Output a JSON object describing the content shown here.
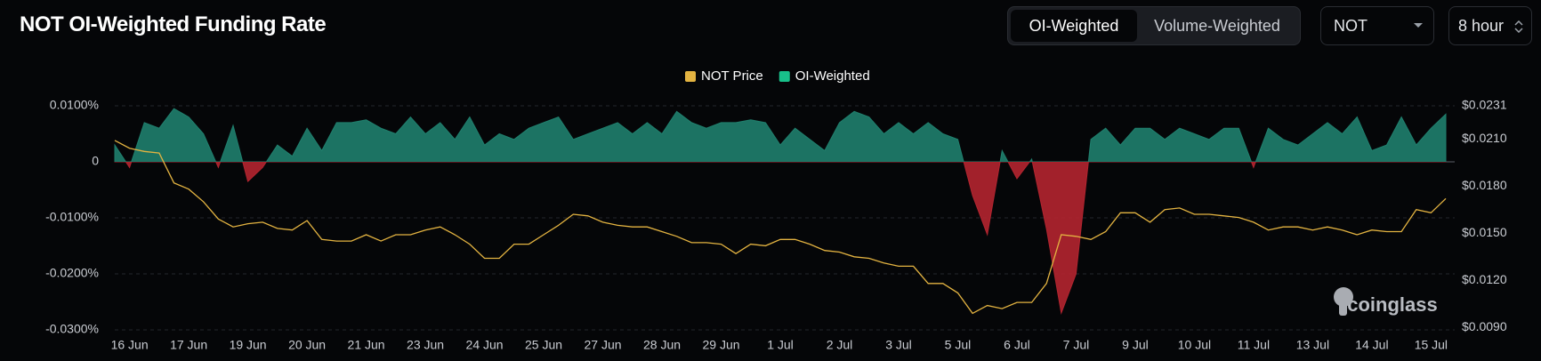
{
  "chart_data": {
    "type": "line",
    "title": "NOT OI-Weighted Funding Rate",
    "controls": {
      "tabs": [
        "OI-Weighted",
        "Volume-Weighted"
      ],
      "symbol": "NOT",
      "interval": "8 hour"
    },
    "watermark": "coinglass",
    "categories": [
      null,
      "16 Jun",
      null,
      null,
      null,
      "17 Jun",
      null,
      null,
      null,
      "19 Jun",
      null,
      null,
      null,
      "20 Jun",
      null,
      null,
      null,
      "21 Jun",
      null,
      null,
      null,
      "23 Jun",
      null,
      null,
      null,
      "24 Jun",
      null,
      null,
      null,
      "25 Jun",
      null,
      null,
      null,
      "27 Jun",
      null,
      null,
      null,
      "28 Jun",
      null,
      null,
      null,
      "29 Jun",
      null,
      null,
      null,
      "1 Jul",
      null,
      null,
      null,
      "2 Jul",
      null,
      null,
      null,
      "3 Jul",
      null,
      null,
      null,
      "5 Jul",
      null,
      null,
      null,
      "6 Jul",
      null,
      null,
      null,
      "7 Jul",
      null,
      null,
      null,
      "9 Jul",
      null,
      null,
      null,
      "10 Jul",
      null,
      null,
      null,
      "11 Jul",
      null,
      null,
      null,
      "13 Jul",
      null,
      null,
      null,
      "14 Jul",
      null,
      null,
      null,
      "15 Jul",
      null
    ],
    "series": [
      {
        "name": "NOT Price",
        "type": "line",
        "axis": "y2",
        "color": "#e3b341",
        "values": [
          0.0209,
          0.0204,
          0.0202,
          0.0201,
          0.0182,
          0.0178,
          0.017,
          0.0159,
          0.0154,
          0.0156,
          0.0157,
          0.0153,
          0.0152,
          0.0158,
          0.0146,
          0.0145,
          0.0145,
          0.0149,
          0.0145,
          0.0149,
          0.0149,
          0.0152,
          0.0154,
          0.0149,
          0.0143,
          0.0134,
          0.0134,
          0.0143,
          0.0143,
          0.0149,
          0.0155,
          0.0162,
          0.0161,
          0.0157,
          0.0155,
          0.0154,
          0.0154,
          0.0151,
          0.0148,
          0.0144,
          0.0144,
          0.0143,
          0.0137,
          0.0143,
          0.0142,
          0.0146,
          0.0146,
          0.0143,
          0.0139,
          0.0138,
          0.0135,
          0.0134,
          0.0131,
          0.0129,
          0.0129,
          0.0118,
          0.0118,
          0.0112,
          0.0099,
          0.0104,
          0.0102,
          0.0106,
          0.0106,
          0.0118,
          0.0149,
          0.0148,
          0.0146,
          0.0151,
          0.0163,
          0.0163,
          0.0157,
          0.0165,
          0.0166,
          0.0162,
          0.0162,
          0.0161,
          0.016,
          0.0157,
          0.0152,
          0.0154,
          0.0154,
          0.0152,
          0.0154,
          0.0152,
          0.0149,
          0.0152,
          0.0151,
          0.0151,
          0.0165,
          0.0163,
          0.0172
        ]
      },
      {
        "name": "OI-Weighted",
        "type": "area",
        "color": "#1f7f6d",
        "negative_color": "#b3242f",
        "values": [
          0.003,
          -0.001,
          0.007,
          0.006,
          0.0095,
          0.008,
          0.005,
          -0.001,
          0.0065,
          -0.0035,
          -0.001,
          0.003,
          0.001,
          0.006,
          0.002,
          0.007,
          0.007,
          0.0075,
          0.006,
          0.005,
          0.008,
          0.005,
          0.007,
          0.004,
          0.008,
          0.003,
          0.005,
          0.004,
          0.006,
          0.007,
          0.008,
          0.004,
          0.005,
          0.006,
          0.007,
          0.005,
          0.007,
          0.005,
          0.009,
          0.007,
          0.006,
          0.007,
          0.007,
          0.0075,
          0.007,
          0.003,
          0.006,
          0.004,
          0.002,
          0.007,
          0.009,
          0.008,
          0.005,
          0.007,
          0.005,
          0.007,
          0.005,
          0.004,
          -0.006,
          -0.013,
          0.002,
          -0.003,
          0.0005,
          -0.012,
          -0.027,
          -0.02,
          0.004,
          0.006,
          0.003,
          0.006,
          0.006,
          0.004,
          0.006,
          0.005,
          0.004,
          0.006,
          0.006,
          -0.001,
          0.006,
          0.004,
          0.003,
          0.005,
          0.007,
          0.005,
          0.008,
          0.002,
          0.003,
          0.008,
          0.003,
          0.006,
          0.0085
        ]
      }
    ],
    "ylim": [
      -0.03,
      0.01
    ],
    "yticks": [
      {
        "value": 0.01,
        "label": "0.0100%"
      },
      0,
      {
        "value": -0.01,
        "label": "-0.0100%"
      },
      {
        "value": -0.02,
        "label": "-0.0200%"
      },
      {
        "value": -0.03,
        "label": "-0.0300%"
      }
    ],
    "y2lim": [
      0.00885,
      0.0231
    ],
    "y2ticks": [
      {
        "value": 0.0231,
        "label": "$0.0231"
      },
      {
        "value": 0.021,
        "label": "$0.0210"
      },
      {
        "value": 0.018,
        "label": "$0.0180"
      },
      {
        "value": 0.015,
        "label": "$0.0150"
      },
      {
        "value": 0.012,
        "label": "$0.0120"
      },
      {
        "value": 0.009,
        "label": "$0.0090"
      }
    ],
    "grid": true,
    "legend": "top"
  }
}
